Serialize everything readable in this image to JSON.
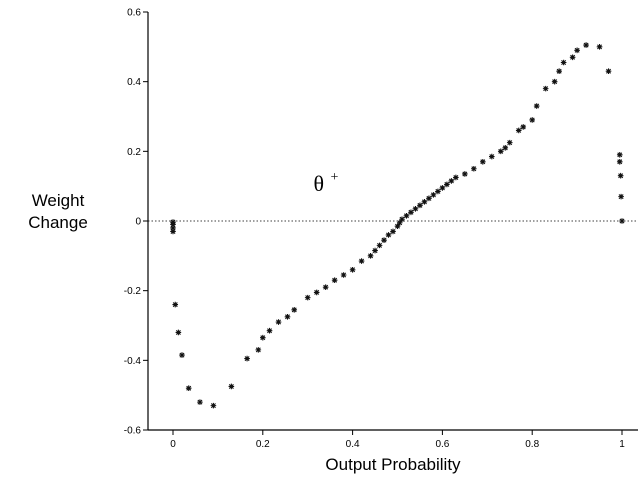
{
  "chart_data": {
    "type": "scatter",
    "title": "",
    "xlabel": "Output Probability",
    "ylabel_line1": "Weight",
    "ylabel_line2": "Change",
    "xlim": [
      -0.07,
      1.0
    ],
    "ylim": [
      -0.6,
      0.6
    ],
    "x_ticks": [
      0,
      0.2,
      0.4,
      0.6,
      0.8,
      1
    ],
    "x_tick_labels": [
      "0",
      "0.2",
      "0.4",
      "0.6",
      "0.8",
      "1"
    ],
    "y_ticks": [
      0.6,
      0.4,
      0.2,
      0,
      -0.2,
      -0.4,
      -0.6
    ],
    "y_tick_labels": [
      "0.6",
      "0.4",
      "0.2",
      "0",
      "-0.2",
      "-0.4",
      "-0.6"
    ],
    "zero_line": true,
    "annotation": {
      "text": "θ",
      "superscript": "+",
      "x": 0.5,
      "y": 0.1
    },
    "points": [
      [
        0.0,
        -0.003
      ],
      [
        0.0,
        -0.01
      ],
      [
        0.0,
        -0.02
      ],
      [
        0.0,
        -0.03
      ],
      [
        0.005,
        -0.24
      ],
      [
        0.012,
        -0.32
      ],
      [
        0.02,
        -0.385
      ],
      [
        0.035,
        -0.48
      ],
      [
        0.06,
        -0.52
      ],
      [
        0.09,
        -0.53
      ],
      [
        0.13,
        -0.475
      ],
      [
        0.165,
        -0.395
      ],
      [
        0.19,
        -0.37
      ],
      [
        0.2,
        -0.335
      ],
      [
        0.215,
        -0.315
      ],
      [
        0.235,
        -0.29
      ],
      [
        0.255,
        -0.275
      ],
      [
        0.27,
        -0.255
      ],
      [
        0.3,
        -0.22
      ],
      [
        0.32,
        -0.205
      ],
      [
        0.34,
        -0.19
      ],
      [
        0.36,
        -0.17
      ],
      [
        0.38,
        -0.155
      ],
      [
        0.4,
        -0.14
      ],
      [
        0.42,
        -0.115
      ],
      [
        0.44,
        -0.1
      ],
      [
        0.45,
        -0.085
      ],
      [
        0.46,
        -0.07
      ],
      [
        0.47,
        -0.055
      ],
      [
        0.48,
        -0.04
      ],
      [
        0.49,
        -0.03
      ],
      [
        0.5,
        -0.015
      ],
      [
        0.505,
        -0.005
      ],
      [
        0.51,
        0.005
      ],
      [
        0.52,
        0.015
      ],
      [
        0.53,
        0.025
      ],
      [
        0.54,
        0.035
      ],
      [
        0.55,
        0.045
      ],
      [
        0.56,
        0.055
      ],
      [
        0.57,
        0.065
      ],
      [
        0.58,
        0.075
      ],
      [
        0.59,
        0.085
      ],
      [
        0.6,
        0.095
      ],
      [
        0.61,
        0.105
      ],
      [
        0.62,
        0.115
      ],
      [
        0.63,
        0.125
      ],
      [
        0.65,
        0.135
      ],
      [
        0.67,
        0.15
      ],
      [
        0.69,
        0.17
      ],
      [
        0.71,
        0.185
      ],
      [
        0.73,
        0.2
      ],
      [
        0.74,
        0.21
      ],
      [
        0.75,
        0.225
      ],
      [
        0.77,
        0.26
      ],
      [
        0.78,
        0.27
      ],
      [
        0.8,
        0.29
      ],
      [
        0.81,
        0.33
      ],
      [
        0.83,
        0.38
      ],
      [
        0.85,
        0.4
      ],
      [
        0.86,
        0.43
      ],
      [
        0.87,
        0.455
      ],
      [
        0.89,
        0.47
      ],
      [
        0.9,
        0.49
      ],
      [
        0.92,
        0.505
      ],
      [
        0.95,
        0.5
      ],
      [
        0.97,
        0.43
      ],
      [
        0.995,
        0.19
      ],
      [
        0.995,
        0.17
      ],
      [
        0.997,
        0.13
      ],
      [
        0.998,
        0.07
      ],
      [
        1.0,
        0.0
      ]
    ]
  }
}
